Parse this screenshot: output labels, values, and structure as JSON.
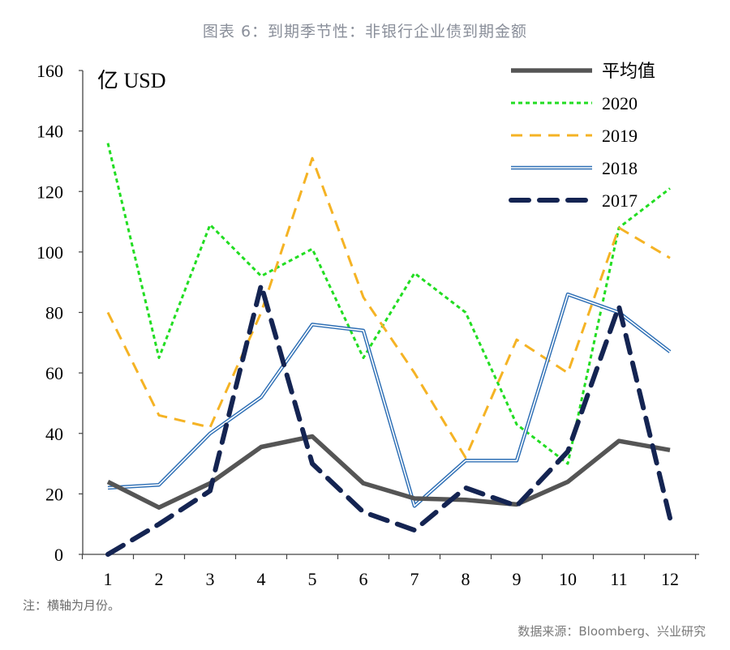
{
  "title": "图表 6：到期季节性：非银行企业债到期金额",
  "note": "注：横轴为月份。",
  "source": "数据来源：Bloomberg、兴业研究",
  "chart_data": {
    "type": "line",
    "ylabel": "亿 USD",
    "xlabel": "",
    "ylim": [
      0,
      160
    ],
    "yticks": [
      0,
      20,
      40,
      60,
      80,
      100,
      120,
      140,
      160
    ],
    "categories": [
      "1",
      "2",
      "3",
      "4",
      "5",
      "6",
      "7",
      "8",
      "9",
      "10",
      "11",
      "12"
    ],
    "legend_position": "top-right",
    "series": [
      {
        "name": "平均值",
        "color": "#555555",
        "style": "solid-thick",
        "values": [
          24,
          15.5,
          23.5,
          35.5,
          39,
          23.5,
          18.5,
          18,
          16.5,
          24,
          37.5,
          34.5
        ]
      },
      {
        "name": "2020",
        "color": "#22dd22",
        "style": "dotted",
        "values": [
          136,
          65,
          109,
          92,
          101,
          65,
          93,
          80,
          43,
          30,
          108,
          121
        ]
      },
      {
        "name": "2019",
        "color": "#f5b324",
        "style": "dashed",
        "values": [
          80,
          46,
          42,
          80,
          131,
          85,
          60,
          32,
          71,
          60,
          108,
          98
        ]
      },
      {
        "name": "2018",
        "color": "#2e6fb5",
        "style": "double",
        "values": [
          22,
          23,
          40,
          52,
          76,
          74,
          16,
          31,
          31,
          86,
          80,
          67
        ]
      },
      {
        "name": "2017",
        "color": "#142452",
        "style": "long-dash",
        "values": [
          0,
          10,
          21,
          89,
          30,
          14,
          8,
          22,
          16,
          34,
          82,
          12
        ]
      }
    ]
  }
}
